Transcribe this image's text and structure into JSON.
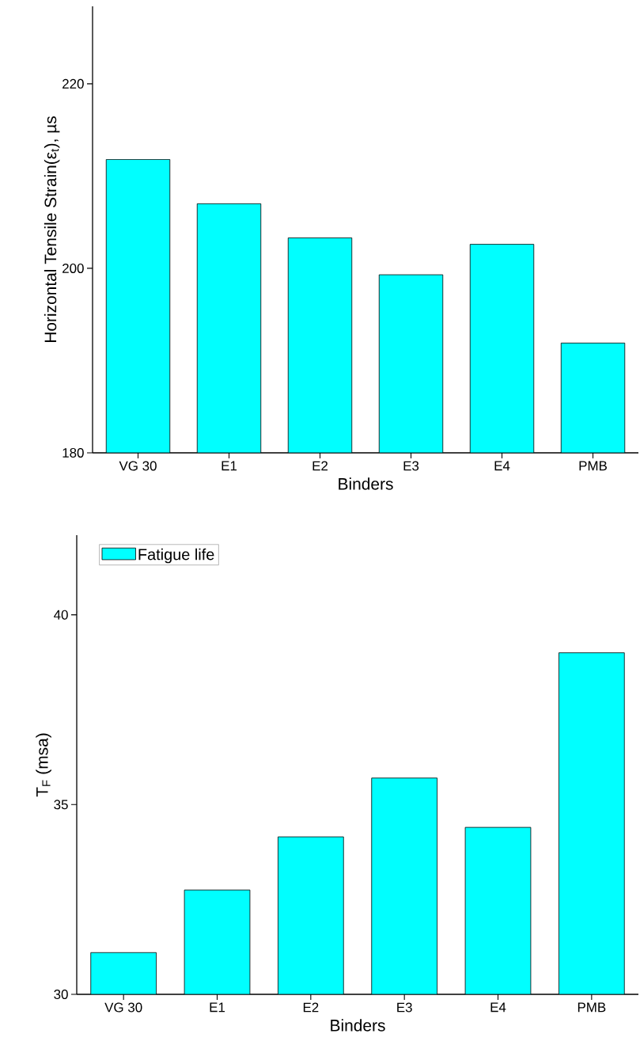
{
  "chart_data": [
    {
      "type": "bar",
      "xlabel": "Binders",
      "ylabel": "Horizontal Tensile Strain(ε$_{t}$), µs",
      "categories": [
        "VG 30",
        "E1",
        "E2",
        "E3",
        "E4",
        "PMB"
      ],
      "values": [
        211.8,
        207.0,
        203.3,
        199.3,
        202.6,
        191.9
      ],
      "color": "#00ffff",
      "ylim": [
        180,
        228.4
      ],
      "yticks": [
        180,
        200,
        220
      ]
    },
    {
      "type": "bar",
      "xlabel": "Binders",
      "ylabel": "T$_{F}$ (msa)",
      "categories": [
        "VG 30",
        "E1",
        "E2",
        "E3",
        "E4",
        "PMB"
      ],
      "series": [
        {
          "name": "Fatigue life",
          "color": "#00ffff",
          "values": [
            31.1,
            32.75,
            34.15,
            35.7,
            34.4,
            39.0
          ]
        }
      ],
      "ylim": [
        30,
        42.1
      ],
      "yticks": [
        30,
        35,
        40
      ],
      "legend": "top left"
    }
  ]
}
